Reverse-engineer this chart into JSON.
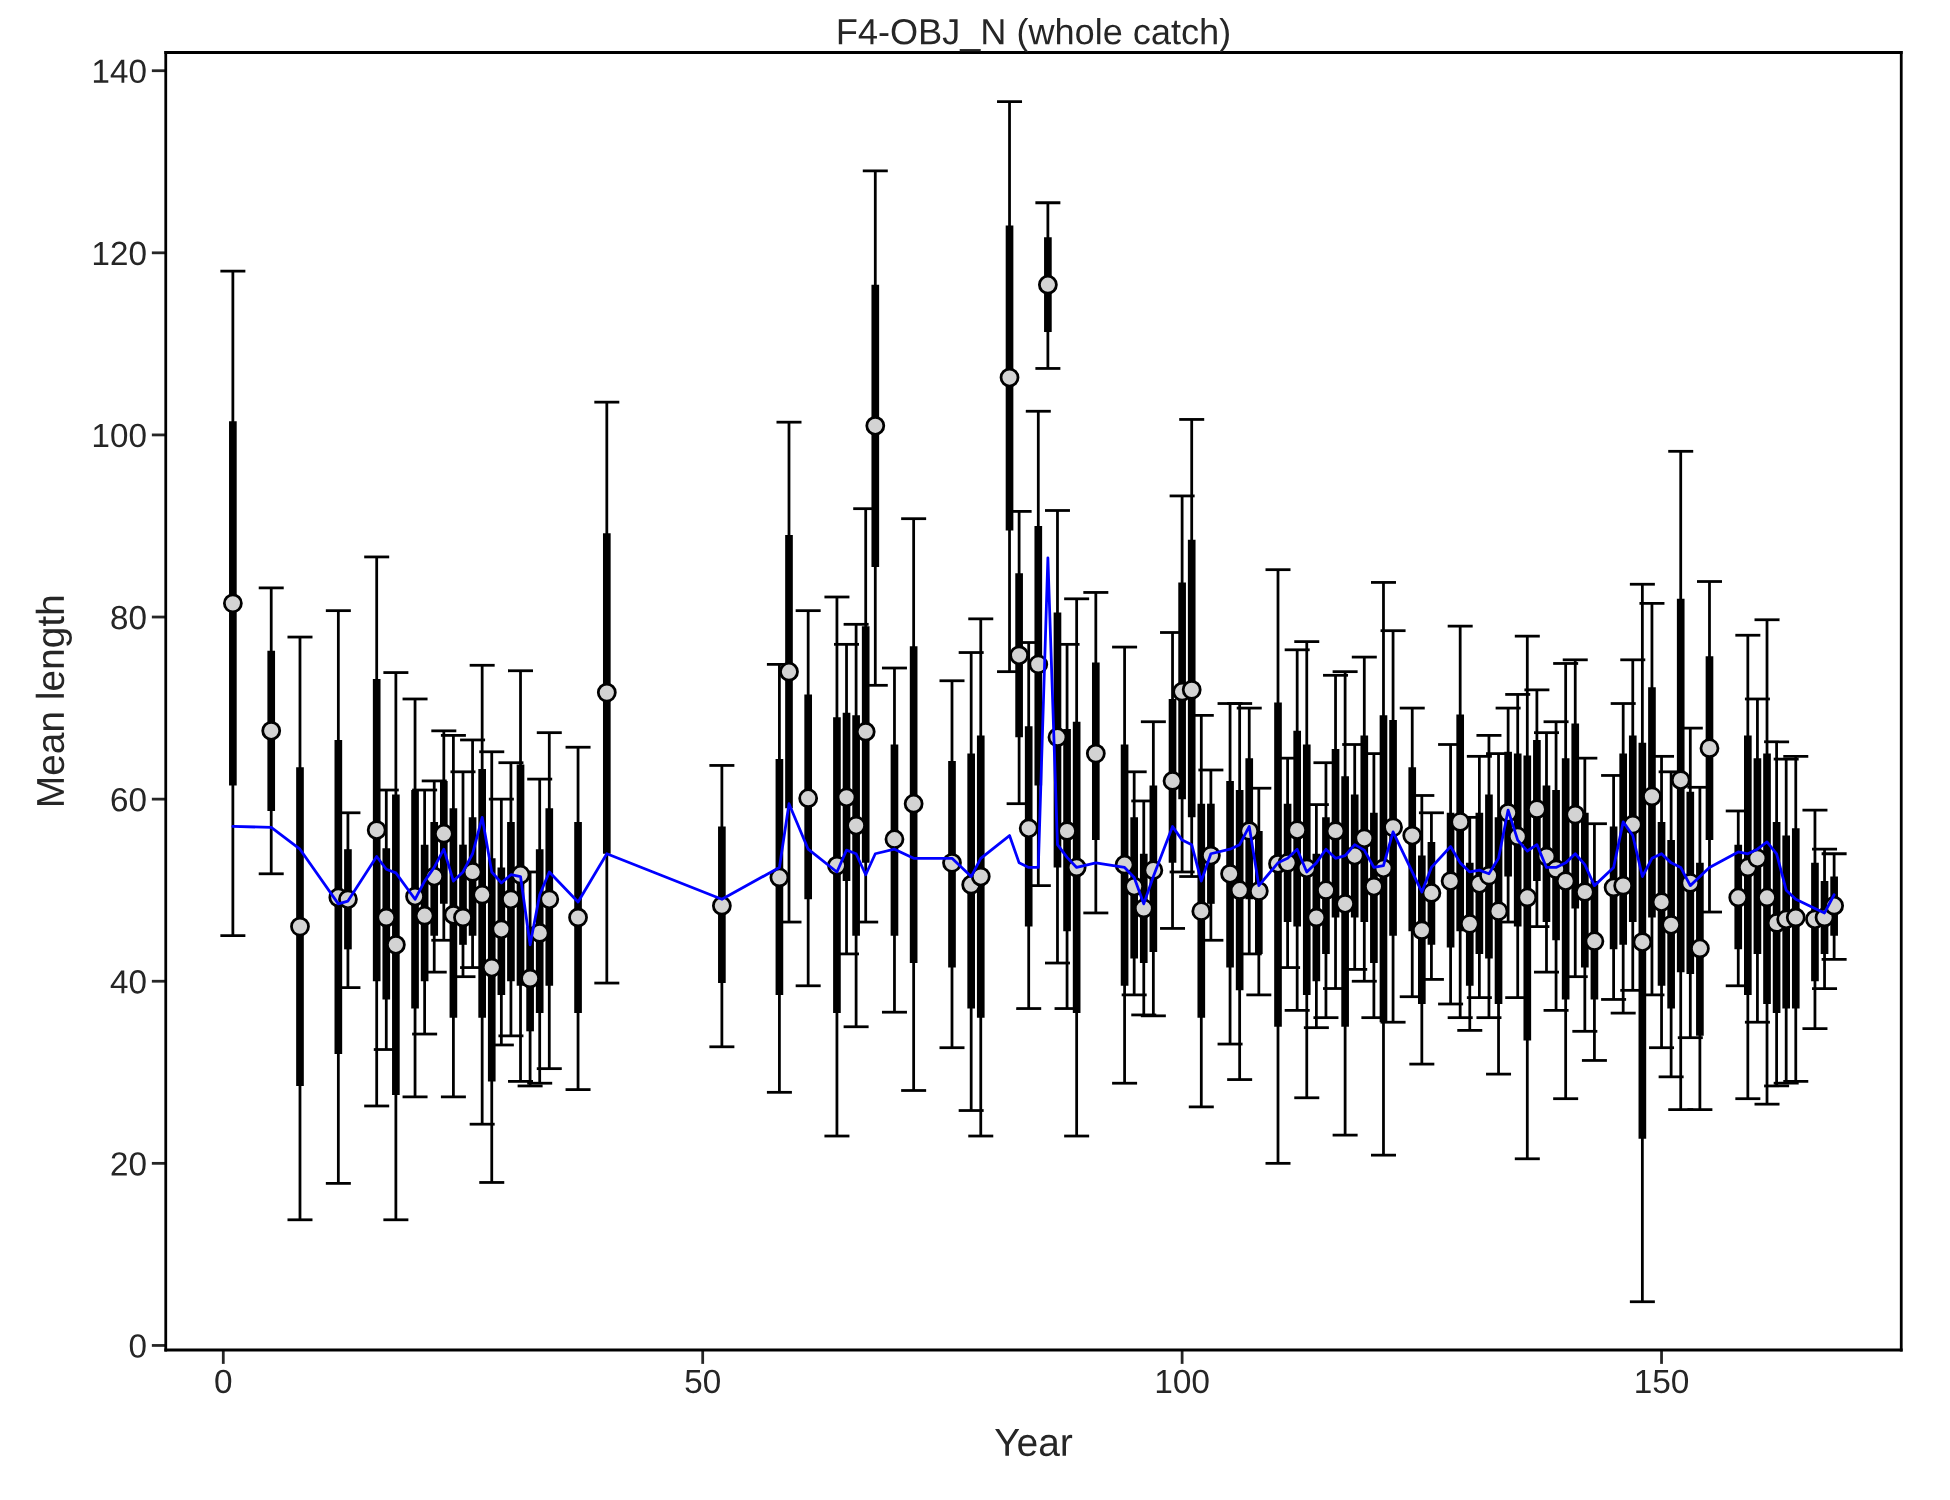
{
  "chart_data": {
    "type": "scatter",
    "title": "F4-OBJ_N (whole catch)",
    "xlabel": "Year",
    "ylabel": "Mean length",
    "xlim": [
      -6,
      175
    ],
    "xticks": [
      0,
      50,
      100,
      150
    ],
    "ylim": [
      -0.5,
      142
    ],
    "yticks": [
      0,
      20,
      40,
      60,
      80,
      100,
      120,
      140
    ],
    "grid": false,
    "legend": false,
    "x": [
      1,
      5,
      8,
      12,
      13,
      16,
      17,
      18,
      20,
      21,
      22,
      23,
      24,
      25,
      26,
      27,
      28,
      29,
      30,
      31,
      32,
      33,
      34,
      37,
      40,
      52,
      58,
      59,
      61,
      64,
      65,
      66,
      67,
      68,
      70,
      72,
      76,
      78,
      79,
      82,
      83,
      84,
      85,
      86,
      87,
      88,
      89,
      91,
      94,
      95,
      96,
      97,
      99,
      100,
      101,
      102,
      103,
      105,
      106,
      107,
      108,
      110,
      111,
      112,
      113,
      114,
      115,
      116,
      117,
      118,
      119,
      120,
      121,
      122,
      124,
      125,
      126,
      128,
      129,
      130,
      131,
      132,
      133,
      134,
      135,
      136,
      137,
      138,
      139,
      140,
      141,
      142,
      143,
      145,
      146,
      147,
      148,
      149,
      150,
      151,
      152,
      153,
      154,
      155,
      158,
      159,
      160,
      161,
      162,
      163,
      164,
      166,
      167,
      168
    ],
    "series": [
      {
        "marker": "circle",
        "color": "#d3d3d3",
        "values": [
          81.5,
          67.5,
          46,
          49.2,
          49,
          56.6,
          47,
          44,
          49.3,
          47.2,
          51.5,
          56.2,
          47.3,
          47,
          52,
          49.5,
          41.5,
          45.7,
          49,
          51.7,
          40.3,
          45.3,
          49,
          47,
          71.7,
          48.3,
          51.4,
          74,
          60.1,
          52.7,
          60.2,
          57.1,
          67.4,
          101,
          55.6,
          59.5,
          53,
          50.6,
          51.5,
          106.3,
          75.8,
          56.8,
          74.8,
          116.5,
          66.8,
          56.5,
          52.5,
          65,
          52.8,
          50.4,
          48,
          52.2,
          62,
          71.8,
          72,
          47.7,
          53.8,
          51.8,
          50,
          56.5,
          49.9,
          52.9,
          53,
          56.6,
          52.4,
          47,
          50,
          56.5,
          48.5,
          53.8,
          55.7,
          50.4,
          52.4,
          56.9,
          56,
          45.6,
          49.7,
          51,
          57.5,
          46.3,
          50.7,
          51.6,
          47.7,
          58.5,
          55.9,
          49.2,
          58.9,
          53.7,
          52.3,
          51,
          58.3,
          49.8,
          44.4,
          50.3,
          50.5,
          57.2,
          44.3,
          60.3,
          48.7,
          46.2,
          62.1,
          50.8,
          43.6,
          65.6,
          49.2,
          52.5,
          53.5,
          49.2,
          46.4,
          46.8,
          47,
          46.8,
          47,
          48.3
        ],
        "errors": [
          [
            45,
            118
          ],
          [
            51.8,
            83.2
          ],
          [
            13.8,
            77.8
          ],
          [
            17.8,
            80.7
          ],
          [
            39.3,
            58.5
          ],
          [
            26.3,
            86.6
          ],
          [
            32.5,
            61
          ],
          [
            13.8,
            73.9
          ],
          [
            27.3,
            71
          ],
          [
            34.2,
            61
          ],
          [
            41,
            62
          ],
          [
            44.5,
            67.5
          ],
          [
            27.3,
            67
          ],
          [
            40.5,
            63
          ],
          [
            41.5,
            66.5
          ],
          [
            24.3,
            74.7
          ],
          [
            17.9,
            65.2
          ],
          [
            33,
            60
          ],
          [
            34,
            64
          ],
          [
            29,
            74.1
          ],
          [
            28.5,
            52
          ],
          [
            28.8,
            62.2
          ],
          [
            30.4,
            67.3
          ],
          [
            28.1,
            65.7
          ],
          [
            39.8,
            103.6
          ],
          [
            32.8,
            63.7
          ],
          [
            27.8,
            74.8
          ],
          [
            46.5,
            101.4
          ],
          [
            39.5,
            80.7
          ],
          [
            23,
            82.2
          ],
          [
            43,
            77
          ],
          [
            35,
            79.2
          ],
          [
            46.5,
            91.9
          ],
          [
            72.5,
            129
          ],
          [
            36.6,
            74.4
          ],
          [
            28,
            90.8
          ],
          [
            32.7,
            73
          ],
          [
            25.8,
            76.1
          ],
          [
            23,
            79.8
          ],
          [
            74,
            136.6
          ],
          [
            59.5,
            91.6
          ],
          [
            37,
            77.2
          ],
          [
            50.5,
            102.6
          ],
          [
            107.3,
            125.5
          ],
          [
            42,
            91.7
          ],
          [
            37,
            77
          ],
          [
            23,
            82
          ],
          [
            47.5,
            82.7
          ],
          [
            28.8,
            76.7
          ],
          [
            38.5,
            63
          ],
          [
            36.3,
            59.8
          ],
          [
            36.2,
            68.5
          ],
          [
            45.8,
            78.3
          ],
          [
            52,
            93.3
          ],
          [
            51.5,
            101.7
          ],
          [
            26.2,
            69.2
          ],
          [
            44.5,
            63.2
          ],
          [
            33.1,
            70.5
          ],
          [
            29.2,
            70.5
          ],
          [
            43,
            70
          ],
          [
            38.5,
            61.2
          ],
          [
            20,
            85.2
          ],
          [
            41.5,
            64.5
          ],
          [
            36.8,
            76.4
          ],
          [
            27.2,
            77.3
          ],
          [
            34.9,
            59.4
          ],
          [
            36,
            64
          ],
          [
            39.2,
            73.6
          ],
          [
            23.1,
            74
          ],
          [
            41.3,
            66
          ],
          [
            40,
            75.6
          ],
          [
            36,
            65
          ],
          [
            20.9,
            83.8
          ],
          [
            35.5,
            78.5
          ],
          [
            38.3,
            70
          ],
          [
            30.9,
            60.4
          ],
          [
            40.2,
            58.5
          ],
          [
            37.5,
            66
          ],
          [
            36,
            79
          ],
          [
            34.6,
            58
          ],
          [
            38.2,
            64.7
          ],
          [
            36,
            67
          ],
          [
            29.8,
            65
          ],
          [
            46.5,
            70
          ],
          [
            38.2,
            71.5
          ],
          [
            20.5,
            77.9
          ],
          [
            46,
            72
          ],
          [
            41,
            67.3
          ],
          [
            36.8,
            68.5
          ],
          [
            27.1,
            74.9
          ],
          [
            40.5,
            75.3
          ],
          [
            34.5,
            64.5
          ],
          [
            31.3,
            57.3
          ],
          [
            38,
            62.6
          ],
          [
            36.5,
            70.5
          ],
          [
            39,
            75.3
          ],
          [
            4.8,
            83.6
          ],
          [
            38.5,
            81.5
          ],
          [
            32.7,
            64.7
          ],
          [
            29.5,
            63
          ],
          [
            25.9,
            98.2
          ],
          [
            33.8,
            67.8
          ],
          [
            25.9,
            61.3
          ],
          [
            47.6,
            83.9
          ],
          [
            39.5,
            58.7
          ],
          [
            27.1,
            78
          ],
          [
            35.5,
            71
          ],
          [
            26.5,
            79.7
          ],
          [
            28.5,
            66.3
          ],
          [
            28.8,
            64.4
          ],
          [
            29,
            64.7
          ],
          [
            34.8,
            58.8
          ],
          [
            39.2,
            54.5
          ],
          [
            42.4,
            54
          ]
        ]
      },
      {
        "type": "bar",
        "color": "#000000",
        "base": [
          61.5,
          58.7,
          28.5,
          32,
          43.5,
          40,
          38,
          27.5,
          37,
          40,
          45,
          48.5,
          36,
          44,
          45,
          36,
          29,
          38.5,
          40,
          39.5,
          34.5,
          36.5,
          39.5,
          36.5,
          54,
          39.8,
          38.5,
          59,
          49,
          36.5,
          51,
          45,
          53,
          85.5,
          45,
          42,
          41.5,
          37,
          36,
          89.5,
          66.8,
          46,
          61.5,
          111.3,
          52.5,
          45.5,
          36.5,
          55.5,
          39.5,
          42.5,
          42,
          43.2,
          53,
          60,
          58,
          36,
          48.5,
          41.5,
          39,
          49,
          43,
          35,
          46.5,
          46,
          38.5,
          40,
          43,
          47,
          35,
          47,
          46.5,
          42,
          35.5,
          45,
          45.5,
          37.5,
          44,
          43.7,
          45.5,
          39.5,
          43,
          42.5,
          37.5,
          51.5,
          46,
          33.5,
          51,
          46.5,
          44.5,
          38,
          48,
          41.5,
          38,
          43.5,
          44,
          46.5,
          22.7,
          47,
          39.5,
          37,
          41,
          40.8,
          34,
          55.5,
          43.5,
          38.5,
          43,
          37.5,
          36.5,
          37,
          37,
          40,
          43,
          45
        ],
        "values": [
          40,
          17.6,
          35,
          34.5,
          11,
          33.2,
          16.6,
          33,
          24,
          15,
          12.5,
          13.5,
          23,
          11,
          13,
          27.3,
          24.5,
          14,
          17.5,
          24.3,
          11.5,
          18,
          19.5,
          21,
          35.2,
          17.2,
          25.9,
          30,
          22.5,
          32.5,
          18.5,
          24.2,
          26,
          31,
          21,
          34.8,
          22.7,
          28,
          31,
          33.5,
          18,
          22,
          28.5,
          10.4,
          28,
          22.2,
          32,
          19.5,
          26.5,
          15.5,
          12,
          18.3,
          18,
          23.8,
          30.5,
          23.5,
          11,
          20.5,
          22,
          15.5,
          13.5,
          35.6,
          13,
          21.5,
          27.5,
          14,
          15,
          18.5,
          27.5,
          13.5,
          20.5,
          16.5,
          33.7,
          23.7,
          18,
          16.3,
          11.3,
          14.8,
          23.8,
          13.5,
          15.5,
          18,
          20.5,
          13.7,
          19,
          31.3,
          15.5,
          15,
          16.5,
          26.5,
          20.3,
          17,
          13,
          13.5,
          21,
          20.5,
          43.5,
          25.3,
          18,
          18.5,
          41,
          20,
          19,
          20.2,
          11.5,
          28.5,
          21.5,
          27.5,
          21,
          19,
          19.8,
          13,
          8,
          6.5
        ]
      },
      {
        "type": "line",
        "marker": "none",
        "color": "#0000ff",
        "values": [
          57,
          56.9,
          54.5,
          48.5,
          48.8,
          53.7,
          52.3,
          51.9,
          49,
          51,
          52.5,
          54.5,
          51,
          52,
          54,
          58,
          52,
          50.8,
          51.7,
          51.5,
          44,
          49.5,
          52,
          48.7,
          54,
          49,
          52.5,
          59.5,
          54.5,
          52,
          54.4,
          54,
          51.7,
          54,
          54.5,
          53.5,
          53.5,
          51.5,
          53.5,
          56,
          53,
          52.5,
          52.5,
          86.5,
          55,
          53.6,
          52.5,
          53,
          52.5,
          51.4,
          48.5,
          51.5,
          57,
          55.5,
          55,
          51,
          54,
          54.5,
          55,
          57,
          50.5,
          53,
          53.5,
          54.5,
          52,
          53,
          54.5,
          53.5,
          53.8,
          55,
          54.4,
          52.5,
          52.7,
          56.4,
          52,
          49.8,
          52.5,
          54.8,
          53,
          52,
          52.2,
          51.8,
          53.5,
          58.8,
          55.5,
          54.3,
          55,
          52.5,
          52.5,
          53,
          54,
          52.8,
          50.5,
          52.5,
          57.5,
          56,
          51.5,
          53.5,
          54,
          53,
          52.5,
          50.5,
          51.5,
          52.5,
          54.2,
          54,
          54.5,
          55.3,
          54,
          50,
          49,
          48,
          47.5,
          49.5
        ]
      }
    ]
  }
}
